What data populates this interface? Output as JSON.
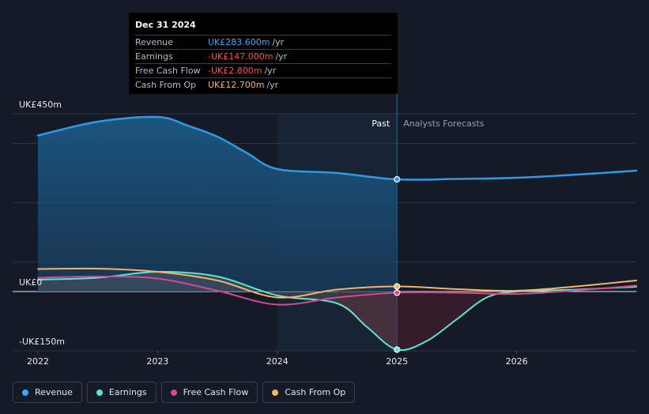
{
  "tooltip": {
    "date": "Dec 31 2024",
    "rows": [
      {
        "name": "Revenue",
        "value": "UK£283.600m",
        "unit": "/yr",
        "color": "#3fa9f5"
      },
      {
        "name": "Earnings",
        "value": "-UK£147.000m",
        "unit": "/yr",
        "color": "#ff4d4d"
      },
      {
        "name": "Free Cash Flow",
        "value": "-UK£2.800m",
        "unit": "/yr",
        "color": "#ff4d4d"
      },
      {
        "name": "Cash From Op",
        "value": "UK£12.700m",
        "unit": "/yr",
        "color": "#f7b267"
      }
    ]
  },
  "chart_data": {
    "type": "line",
    "title": "",
    "xlabel": "",
    "ylabel": "",
    "ylim": [
      -150,
      450
    ],
    "y_tick_labels": [
      "UK£450m",
      "UK£0",
      "-UK£150m"
    ],
    "x_tick_labels": [
      "2022",
      "2023",
      "2024",
      "2025",
      "2026"
    ],
    "past_label": "Past",
    "forecast_label": "Analysts Forecasts",
    "divider_x": 2025.0,
    "series": [
      {
        "name": "Revenue",
        "color": "#2e9ae6",
        "points": [
          [
            2022.0,
            395
          ],
          [
            2022.5,
            430
          ],
          [
            2023.0,
            442
          ],
          [
            2023.25,
            420
          ],
          [
            2023.5,
            392
          ],
          [
            2023.75,
            350
          ],
          [
            2024.0,
            310
          ],
          [
            2024.5,
            300
          ],
          [
            2025.0,
            284
          ],
          [
            2025.5,
            285
          ],
          [
            2026.0,
            288
          ],
          [
            2026.5,
            296
          ],
          [
            2027.0,
            306
          ]
        ]
      },
      {
        "name": "Earnings",
        "color": "#5fe3d2",
        "points": [
          [
            2022.0,
            30
          ],
          [
            2022.5,
            35
          ],
          [
            2023.0,
            50
          ],
          [
            2023.5,
            38
          ],
          [
            2024.0,
            -10
          ],
          [
            2024.5,
            -30
          ],
          [
            2024.75,
            -90
          ],
          [
            2025.0,
            -147
          ],
          [
            2025.25,
            -125
          ],
          [
            2025.5,
            -70
          ],
          [
            2025.75,
            -15
          ],
          [
            2026.0,
            0
          ],
          [
            2026.5,
            5
          ],
          [
            2027.0,
            12
          ]
        ]
      },
      {
        "name": "Free Cash Flow",
        "color": "#d14b8f",
        "points": [
          [
            2022.0,
            35
          ],
          [
            2022.5,
            38
          ],
          [
            2023.0,
            33
          ],
          [
            2023.5,
            2
          ],
          [
            2024.0,
            -33
          ],
          [
            2024.5,
            -15
          ],
          [
            2025.0,
            -3
          ],
          [
            2025.5,
            -3
          ],
          [
            2026.0,
            -6
          ],
          [
            2026.5,
            3
          ],
          [
            2027.0,
            15
          ]
        ]
      },
      {
        "name": "Cash From Op",
        "color": "#f2b36b",
        "points": [
          [
            2022.0,
            57
          ],
          [
            2022.5,
            58
          ],
          [
            2023.0,
            50
          ],
          [
            2023.5,
            28
          ],
          [
            2024.0,
            -15
          ],
          [
            2024.5,
            5
          ],
          [
            2025.0,
            13
          ],
          [
            2025.5,
            6
          ],
          [
            2026.0,
            2
          ],
          [
            2026.5,
            13
          ],
          [
            2027.0,
            28
          ]
        ]
      }
    ]
  },
  "legend": {
    "items": [
      {
        "label": "Revenue",
        "color": "#3fa9f5"
      },
      {
        "label": "Earnings",
        "color": "#5fe3d2"
      },
      {
        "label": "Free Cash Flow",
        "color": "#d14b8f"
      },
      {
        "label": "Cash From Op",
        "color": "#f2b36b"
      }
    ]
  }
}
